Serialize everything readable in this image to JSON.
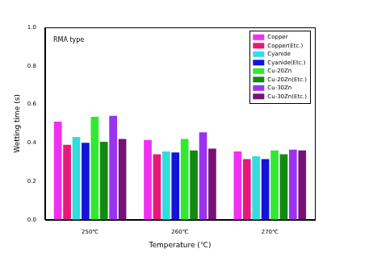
{
  "chart_data": {
    "type": "bar",
    "annotations": [
      "RMA type"
    ],
    "x_label": "Temperature (℃)",
    "y_label": "Wetting time (s)",
    "categories": [
      "250℃",
      "260℃",
      "270℃"
    ],
    "series": [
      {
        "name": "Copper",
        "color": "#f030f0",
        "values": [
          0.51,
          0.415,
          0.355
        ]
      },
      {
        "name": "Copper(Etc.)",
        "color": "#e8187a",
        "values": [
          0.39,
          0.34,
          0.315
        ]
      },
      {
        "name": "Cyanide",
        "color": "#33dddd",
        "values": [
          0.43,
          0.355,
          0.33
        ]
      },
      {
        "name": "Cyanide(Etc.)",
        "color": "#1414d8",
        "values": [
          0.4,
          0.35,
          0.315
        ]
      },
      {
        "name": "Cu-20Zn",
        "color": "#33e833",
        "values": [
          0.535,
          0.42,
          0.36
        ]
      },
      {
        "name": "Cu-20Zn(Etc.)",
        "color": "#128a12",
        "values": [
          0.405,
          0.36,
          0.34
        ]
      },
      {
        "name": "Cu-30Zn",
        "color": "#9a33ee",
        "values": [
          0.54,
          0.455,
          0.365
        ]
      },
      {
        "name": "Cu-30Zn(Etc.)",
        "color": "#761276",
        "values": [
          0.42,
          0.37,
          0.36
        ]
      }
    ],
    "ylim": [
      0,
      1.0
    ],
    "yticks": [
      {
        "value": 0,
        "label": "0.0"
      },
      {
        "value": 0.2,
        "label": "0.2"
      },
      {
        "value": 0.4,
        "label": "0.4"
      },
      {
        "value": 0.6,
        "label": "0.6"
      },
      {
        "value": 0.8,
        "label": "0.8"
      },
      {
        "value": 1.0,
        "label": "1.0"
      }
    ],
    "grid": false,
    "legend": "upper right"
  }
}
